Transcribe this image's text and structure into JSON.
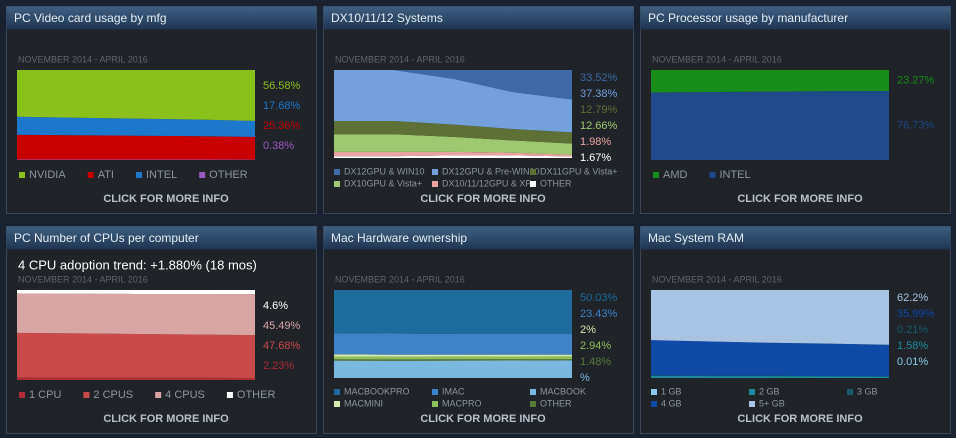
{
  "panels": [
    {
      "title": "PC Video card usage by mfg",
      "subtitle": "NOVEMBER 2014 - APRIL 2016",
      "footer": "CLICK FOR MORE INFO",
      "chart": {
        "type": "area",
        "ylim": [
          0,
          100
        ],
        "series": [
          {
            "name": "NVIDIA",
            "color": "#8bc11c",
            "values": [
              52,
              53,
              54,
              55,
              56.58
            ],
            "value_label": "56.58%"
          },
          {
            "name": "INTEL",
            "color": "#1c78cc",
            "values": [
              20,
              19.5,
              19,
              18.5,
              17.68
            ],
            "value_label": "17.68%"
          },
          {
            "name": "ATI",
            "color": "#c80000",
            "values": [
              27.5,
              27,
              26.5,
              26,
              25.36
            ],
            "value_label": "25.36%"
          },
          {
            "name": "OTHER",
            "color": "#9a5bbf",
            "values": [
              0.5,
              0.5,
              0.5,
              0.5,
              0.38
            ],
            "value_label": "0.38%"
          }
        ]
      },
      "legend": [
        "NVIDIA",
        "ATI",
        "INTEL",
        "OTHER"
      ]
    },
    {
      "title": "DX10/11/12 Systems",
      "subtitle": "NOVEMBER 2014 - APRIL 2016",
      "footer": "CLICK FOR MORE INFO",
      "chart": {
        "type": "area",
        "ylim": [
          0,
          100
        ],
        "series": [
          {
            "name": "DX12GPU & WIN10",
            "color": "#3f6aa6",
            "values": [
              0,
              0,
              10,
              25,
              33.52
            ],
            "value_label": "33.52%"
          },
          {
            "name": "DX12GPU & Pre-WIN10",
            "color": "#74a0dc",
            "values": [
              58,
              58,
              52,
              42,
              37.38
            ],
            "value_label": "37.38%"
          },
          {
            "name": "DX11GPU & Vista+",
            "color": "#5e7036",
            "values": [
              15,
              15,
              14,
              13,
              12.79
            ],
            "value_label": "12.79%"
          },
          {
            "name": "DX10GPU & Vista+",
            "color": "#a0c870",
            "values": [
              20,
              20,
              17,
              14,
              12.66
            ],
            "value_label": "12.66%"
          },
          {
            "name": "DX10/11/12GPU & XP",
            "color": "#e8a4a2",
            "values": [
              5,
              5,
              4,
              3,
              1.98
            ],
            "value_label": "1.98%"
          },
          {
            "name": "OTHER",
            "color": "#ffffff",
            "values": [
              2,
              2,
              3,
              3,
              1.67
            ],
            "value_label": "1.67%"
          }
        ]
      },
      "legend": [
        "DX12GPU & WIN10",
        "DX12GPU & Pre-WIN10",
        "DX11GPU & Vista+",
        "DX10GPU & Vista+",
        "DX10/11/12GPU & XP",
        "OTHER"
      ]
    },
    {
      "title": "PC Processor usage by manufacturer",
      "subtitle": "NOVEMBER 2014 - APRIL 2016",
      "footer": "CLICK FOR MORE INFO",
      "chart": {
        "type": "area",
        "ylim": [
          0,
          100
        ],
        "series": [
          {
            "name": "AMD",
            "color": "#1a8c1a",
            "values": [
              25,
              24.5,
              24,
              23.5,
              23.27
            ],
            "value_label": "23.27%"
          },
          {
            "name": "INTEL",
            "color": "#1e4a8a",
            "values": [
              75,
              75.5,
              76,
              76.5,
              76.73
            ],
            "value_label": "76.73%"
          }
        ]
      },
      "legend": [
        "AMD",
        "INTEL"
      ]
    },
    {
      "title": "PC Number of CPUs per computer",
      "annotation": "4 CPU adoption trend: +1.880% (18 mos)",
      "subtitle": "NOVEMBER 2014 - APRIL 2016",
      "footer": "CLICK FOR MORE INFO",
      "chart": {
        "type": "area",
        "ylim": [
          0,
          100
        ],
        "series": [
          {
            "name": "OTHER",
            "color": "#ffffff",
            "values": [
              4,
              4.2,
              4.4,
              4.5,
              4.6
            ],
            "value_label": "4.6%"
          },
          {
            "name": "4 CPUS",
            "color": "#d9a4a4",
            "values": [
              43.6,
              44,
              44.5,
              45,
              45.49
            ],
            "value_label": "45.49%"
          },
          {
            "name": "2 CPUS",
            "color": "#c94a4a",
            "values": [
              49.5,
              49,
              48.5,
              48,
              47.68
            ],
            "value_label": "47.68%"
          },
          {
            "name": "1 CPU",
            "color": "#b02c36",
            "values": [
              2.9,
              2.8,
              2.6,
              2.5,
              2.23
            ],
            "value_label": "2.23%"
          }
        ]
      },
      "legend": [
        "1 CPU",
        "2 CPUS",
        "4 CPUS",
        "OTHER"
      ]
    },
    {
      "title": "Mac Hardware ownership",
      "subtitle": "NOVEMBER 2014 - APRIL 2016",
      "footer": "CLICK FOR MORE INFO",
      "chart": {
        "type": "area",
        "ylim": [
          0,
          100
        ],
        "series": [
          {
            "name": "MACBOOKPRO",
            "color": "#1d6c9c",
            "values": [
              49,
              49.5,
              50,
              50,
              50.03
            ],
            "value_label": "50.03%"
          },
          {
            "name": "IMAC",
            "color": "#3f82c6",
            "values": [
              24,
              24,
              23.5,
              23.5,
              23.43
            ],
            "value_label": "23.43%"
          },
          {
            "name": "MACMINI",
            "color": "#d4eab0",
            "values": [
              2.5,
              2.3,
              2.2,
              2.1,
              2
            ],
            "value_label": "2%"
          },
          {
            "name": "MACPRO",
            "color": "#8dbf5a",
            "values": [
              3.2,
              3.1,
              3,
              3,
              2.94
            ],
            "value_label": "2.94%"
          },
          {
            "name": "OTHER",
            "color": "#5a7a3a",
            "values": [
              1.6,
              1.6,
              1.5,
              1.5,
              1.48
            ],
            "value_label": "1.48%"
          },
          {
            "name": "MACBOOK",
            "color": "#7ab8e0",
            "values": [
              19.7,
              19.5,
              19.8,
              19.9,
              20.12
            ],
            "value_label": "%"
          }
        ]
      },
      "legend": [
        "MACBOOKPRO",
        "IMAC",
        "MACBOOK",
        "MACMINI",
        "MACPRO",
        "OTHER"
      ]
    },
    {
      "title": "Mac System RAM",
      "subtitle": "NOVEMBER 2014 - APRIL 2016",
      "footer": "CLICK FOR MORE INFO",
      "chart": {
        "type": "area",
        "ylim": [
          0,
          100
        ],
        "series": [
          {
            "name": "5+ GB",
            "color": "#a9c4e2",
            "values": [
              57,
              58.5,
              60,
              61,
              62.2
            ],
            "value_label": "62.2%"
          },
          {
            "name": "4 GB",
            "color": "#0f4aa6",
            "values": [
              40,
              39,
              37.5,
              36.8,
              35.99
            ],
            "value_label": "35.99%"
          },
          {
            "name": "3 GB",
            "color": "#1b5a6c",
            "values": [
              0.3,
              0.3,
              0.3,
              0.2,
              0.21
            ],
            "value_label": "0.21%"
          },
          {
            "name": "2 GB",
            "color": "#1f8c9c",
            "values": [
              2.6,
              2.2,
              2.2,
              2,
              1.58
            ],
            "value_label": "1.58%"
          },
          {
            "name": "1 GB",
            "color": "#8ecae8",
            "values": [
              0.1,
              0,
              0,
              0,
              0.01
            ],
            "value_label": "0.01%"
          }
        ]
      },
      "legend": [
        "1 GB",
        "2 GB",
        "3 GB",
        "4 GB",
        "5+ GB"
      ]
    }
  ]
}
